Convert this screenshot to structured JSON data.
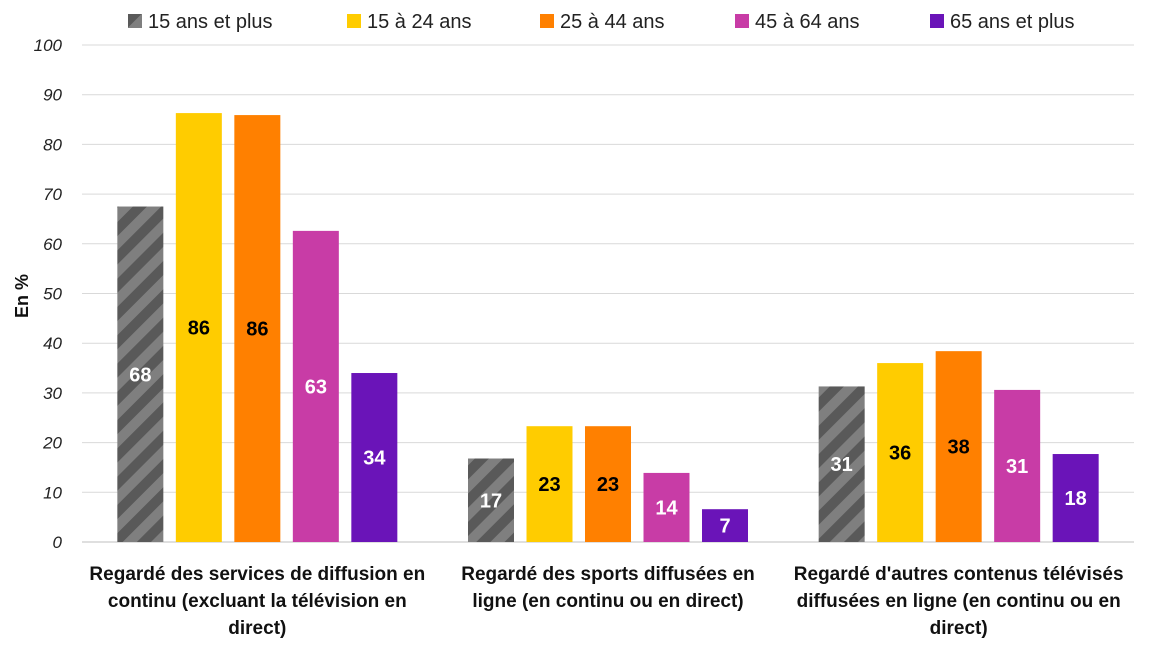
{
  "chart_data": {
    "type": "bar",
    "ylabel": "En %",
    "ylim": [
      0,
      100
    ],
    "yticks": [
      0,
      10,
      20,
      30,
      40,
      50,
      60,
      70,
      80,
      90,
      100
    ],
    "grid": true,
    "legend_position": "top",
    "categories": [
      [
        "Regardé des services de diffusion en",
        "continu (excluant la télévision en",
        "direct)"
      ],
      [
        "Regardé des sports diffusées en",
        "ligne (en continu ou en direct)"
      ],
      [
        "Regardé d'autres contenus télévisés",
        "diffusées en ligne (en continu ou en",
        "direct)"
      ]
    ],
    "series": [
      {
        "name": "15 ans et plus",
        "color": "#7f7f7f",
        "pattern": "hatched",
        "values": [
          67.5,
          16.8,
          31.3
        ],
        "labels": [
          "68",
          "17",
          "31"
        ],
        "label_color": "#ffffff"
      },
      {
        "name": "15 à 24 ans",
        "color": "#ffcc00",
        "values": [
          86.3,
          23.3,
          36.0
        ],
        "labels": [
          "86",
          "23",
          "36"
        ],
        "label_color": "#000000"
      },
      {
        "name": "25 à 44 ans",
        "color": "#ff8000",
        "values": [
          85.9,
          23.3,
          38.4
        ],
        "labels": [
          "86",
          "23",
          "38"
        ],
        "label_color": "#000000"
      },
      {
        "name": "45 à 64 ans",
        "color": "#c83ca6",
        "values": [
          62.6,
          13.9,
          30.6
        ],
        "labels": [
          "63",
          "14",
          "31"
        ],
        "label_color": "#ffffff"
      },
      {
        "name": "65 ans et plus",
        "color": "#6a14b8",
        "values": [
          34.0,
          6.6,
          17.7
        ],
        "labels": [
          "34",
          "7",
          "18"
        ],
        "label_color": "#ffffff"
      }
    ]
  }
}
